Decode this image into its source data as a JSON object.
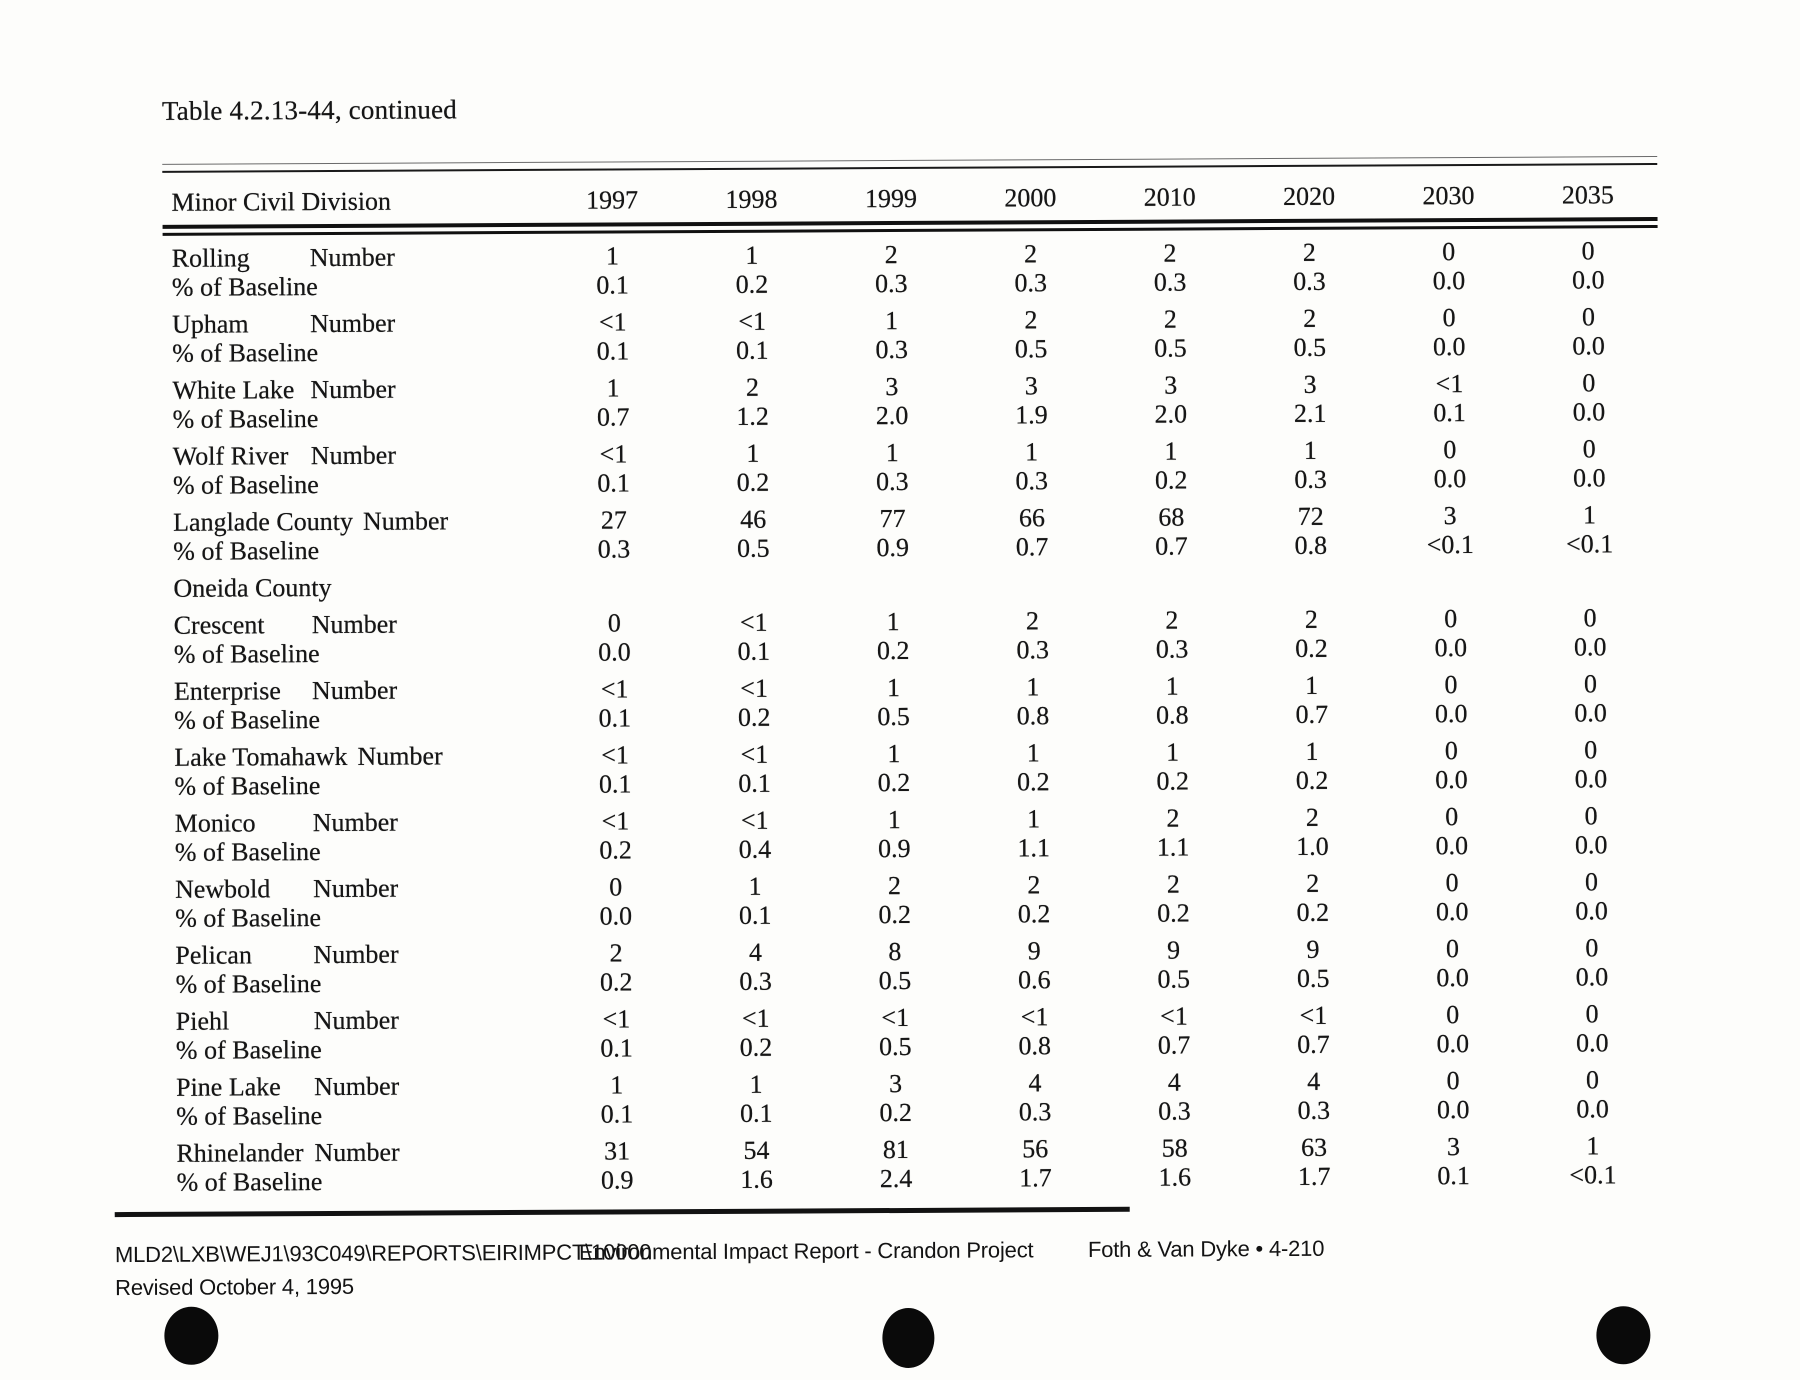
{
  "page": {
    "title": "Table 4.2.13-44, continued"
  },
  "table": {
    "header": {
      "division_label": "Minor Civil Division",
      "years": [
        "1997",
        "1998",
        "1999",
        "2000",
        "2010",
        "2020",
        "2030",
        "2035"
      ]
    },
    "row_labels": {
      "number": "Number",
      "baseline": "% of Baseline"
    },
    "rows": [
      {
        "type": "data",
        "name": "Rolling",
        "number": [
          "1",
          "1",
          "2",
          "2",
          "2",
          "2",
          "0",
          "0"
        ],
        "baseline": [
          "0.1",
          "0.2",
          "0.3",
          "0.3",
          "0.3",
          "0.3",
          "0.0",
          "0.0"
        ]
      },
      {
        "type": "data",
        "name": "Upham",
        "number": [
          "<1",
          "<1",
          "1",
          "2",
          "2",
          "2",
          "0",
          "0"
        ],
        "baseline": [
          "0.1",
          "0.1",
          "0.3",
          "0.5",
          "0.5",
          "0.5",
          "0.0",
          "0.0"
        ]
      },
      {
        "type": "data",
        "name": "White Lake",
        "number": [
          "1",
          "2",
          "3",
          "3",
          "3",
          "3",
          "<1",
          "0"
        ],
        "baseline": [
          "0.7",
          "1.2",
          "2.0",
          "1.9",
          "2.0",
          "2.1",
          "0.1",
          "0.0"
        ]
      },
      {
        "type": "data",
        "name": "Wolf River",
        "number": [
          "<1",
          "1",
          "1",
          "1",
          "1",
          "1",
          "0",
          "0"
        ],
        "baseline": [
          "0.1",
          "0.2",
          "0.3",
          "0.3",
          "0.2",
          "0.3",
          "0.0",
          "0.0"
        ]
      },
      {
        "type": "data",
        "name": "Langlade County",
        "number": [
          "27",
          "46",
          "77",
          "66",
          "68",
          "72",
          "3",
          "1"
        ],
        "baseline": [
          "0.3",
          "0.5",
          "0.9",
          "0.7",
          "0.7",
          "0.8",
          "<0.1",
          "<0.1"
        ]
      },
      {
        "type": "section",
        "name": "Oneida County"
      },
      {
        "type": "data",
        "name": "Crescent",
        "number": [
          "0",
          "<1",
          "1",
          "2",
          "2",
          "2",
          "0",
          "0"
        ],
        "baseline": [
          "0.0",
          "0.1",
          "0.2",
          "0.3",
          "0.3",
          "0.2",
          "0.0",
          "0.0"
        ]
      },
      {
        "type": "data",
        "name": "Enterprise",
        "number": [
          "<1",
          "<1",
          "1",
          "1",
          "1",
          "1",
          "0",
          "0"
        ],
        "baseline": [
          "0.1",
          "0.2",
          "0.5",
          "0.8",
          "0.8",
          "0.7",
          "0.0",
          "0.0"
        ]
      },
      {
        "type": "data",
        "name": "Lake Tomahawk",
        "number": [
          "<1",
          "<1",
          "1",
          "1",
          "1",
          "1",
          "0",
          "0"
        ],
        "baseline": [
          "0.1",
          "0.1",
          "0.2",
          "0.2",
          "0.2",
          "0.2",
          "0.0",
          "0.0"
        ]
      },
      {
        "type": "data",
        "name": "Monico",
        "number": [
          "<1",
          "<1",
          "1",
          "1",
          "2",
          "2",
          "0",
          "0"
        ],
        "baseline": [
          "0.2",
          "0.4",
          "0.9",
          "1.1",
          "1.1",
          "1.0",
          "0.0",
          "0.0"
        ]
      },
      {
        "type": "data",
        "name": "Newbold",
        "number": [
          "0",
          "1",
          "2",
          "2",
          "2",
          "2",
          "0",
          "0"
        ],
        "baseline": [
          "0.0",
          "0.1",
          "0.2",
          "0.2",
          "0.2",
          "0.2",
          "0.0",
          "0.0"
        ]
      },
      {
        "type": "data",
        "name": "Pelican",
        "number": [
          "2",
          "4",
          "8",
          "9",
          "9",
          "9",
          "0",
          "0"
        ],
        "baseline": [
          "0.2",
          "0.3",
          "0.5",
          "0.6",
          "0.5",
          "0.5",
          "0.0",
          "0.0"
        ]
      },
      {
        "type": "data",
        "name": "Piehl",
        "number": [
          "<1",
          "<1",
          "<1",
          "<1",
          "<1",
          "<1",
          "0",
          "0"
        ],
        "baseline": [
          "0.1",
          "0.2",
          "0.5",
          "0.8",
          "0.7",
          "0.7",
          "0.0",
          "0.0"
        ]
      },
      {
        "type": "data",
        "name": "Pine Lake",
        "number": [
          "1",
          "1",
          "3",
          "4",
          "4",
          "4",
          "0",
          "0"
        ],
        "baseline": [
          "0.1",
          "0.1",
          "0.2",
          "0.3",
          "0.3",
          "0.3",
          "0.0",
          "0.0"
        ]
      },
      {
        "type": "data",
        "name": "Rhinelander",
        "number": [
          "31",
          "54",
          "81",
          "56",
          "58",
          "63",
          "3",
          "1"
        ],
        "baseline": [
          "0.9",
          "1.6",
          "2.4",
          "1.7",
          "1.6",
          "1.7",
          "0.1",
          "<0.1"
        ]
      }
    ]
  },
  "footer": {
    "path": "MLD2\\LXB\\WEJ1\\93C049\\REPORTS\\EIRIMPCT\\10000",
    "report": "Environmental Impact Report - Crandon Project",
    "firm_page": "Foth & Van Dyke • 4-210",
    "revised": "Revised October 4, 1995"
  }
}
